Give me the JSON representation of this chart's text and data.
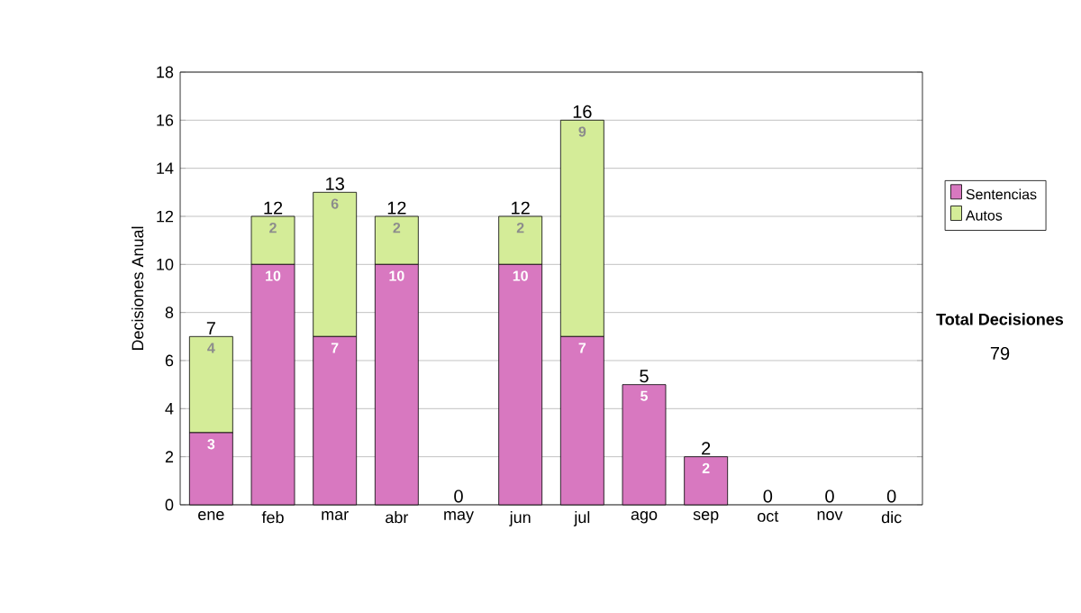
{
  "chart_data": {
    "type": "bar",
    "stacked": true,
    "ylabel": "Decisiones Anual",
    "categories": [
      "ene",
      "feb",
      "mar",
      "abr",
      "may",
      "jun",
      "jul",
      "ago",
      "sep",
      "oct",
      "nov",
      "dic"
    ],
    "series": [
      {
        "name": "Sentencias",
        "color": "#d878c0",
        "values": [
          3,
          10,
          7,
          10,
          0,
          10,
          7,
          5,
          2,
          0,
          0,
          0
        ],
        "value_labels": [
          "3",
          "10",
          "7",
          "10",
          null,
          "10",
          "7",
          "5",
          "2",
          null,
          null,
          null
        ]
      },
      {
        "name": "Autos",
        "color": "#d4ec98",
        "values": [
          4,
          2,
          6,
          2,
          0,
          2,
          9,
          0,
          0,
          0,
          0,
          0
        ],
        "value_labels": [
          "4",
          "2",
          "6",
          "2",
          null,
          "2",
          "9",
          null,
          null,
          null,
          null,
          null
        ]
      }
    ],
    "totals": [
      "7",
      "12",
      "13",
      "12",
      "0",
      "12",
      "16",
      "5",
      "2",
      "0",
      "0",
      "0"
    ],
    "ylim": [
      0,
      18
    ],
    "yticks": [
      0,
      2,
      4,
      6,
      8,
      10,
      12,
      14,
      16,
      18
    ],
    "grid": "y",
    "legend": "right",
    "annotations": [
      "Total Decisiones",
      "79"
    ]
  }
}
